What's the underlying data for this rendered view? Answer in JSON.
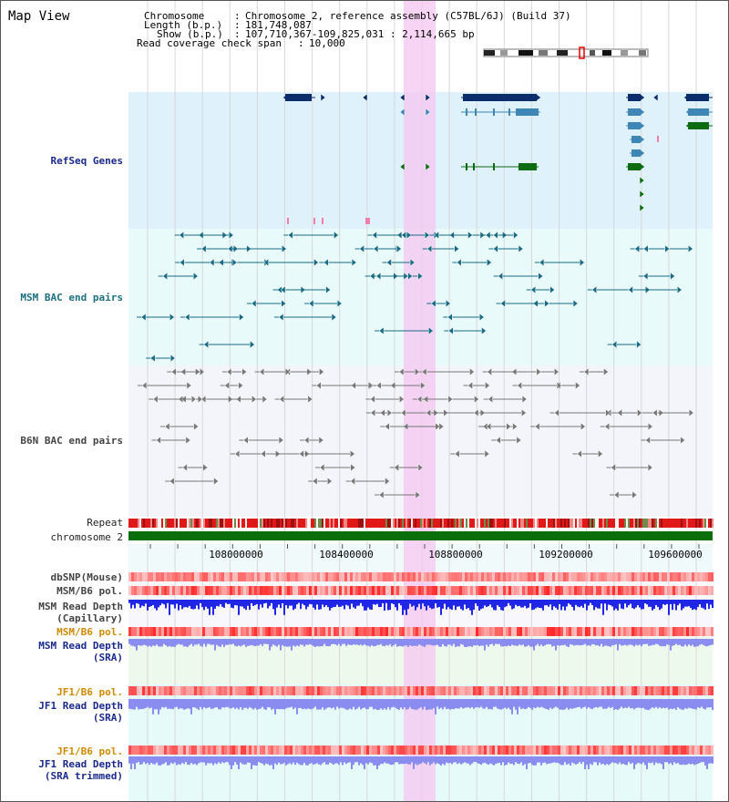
{
  "app": {
    "title": "Map View"
  },
  "info": {
    "chromosome_label": "Chromosome",
    "chromosome_value": "Chromosome 2, reference assembly (C57BL/6J) (Build 37)",
    "length_label": "Length (b.p.)",
    "length_value": "181,748,087",
    "show_label": "Show (b.p.)",
    "show_value": "107,710,367-109,825,031 : 2,114,665 bp",
    "span_label": "Read coverage check span",
    "span_value": "10,000"
  },
  "tracks": {
    "refseq": "RefSeq Genes",
    "msm_bac": "MSM BAC end pairs",
    "b6n_bac": "B6N BAC end pairs",
    "repeat": "Repeat",
    "chromosome": "chromosome 2",
    "dbsnp": "dbSNP(Mouse)",
    "msm_b6_pol": "MSM/B6 pol.",
    "msm_read_depth": "MSM Read Depth",
    "msm_read_depth_sub": "(Capillary)",
    "msm_b6_pol_sra": "MSM/B6 pol.",
    "msm_read_depth_sra": "MSM Read Depth",
    "msm_read_depth_sra_sub": "(SRA)",
    "jf1_b6_pol": "JF1/B6 pol.",
    "jf1_read_depth": "JF1 Read Depth",
    "jf1_read_depth_sub": "(SRA)",
    "jf1_b6_pol_trim": "JF1/B6 pol.",
    "jf1_read_depth_trim": "JF1 Read Depth",
    "jf1_read_depth_trim_sub": "(SRA trimmed)"
  },
  "axis": {
    "ticks": [
      "108000000",
      "108400000",
      "108800000",
      "109200000",
      "109600000"
    ]
  },
  "colors": {
    "refseq_bg": "#dff1fb",
    "msm_bg": "#e8fafa",
    "b6n_bg": "#f4f4fb",
    "highlight": "#f5c6f0",
    "gene_dark": "#0b2d6b",
    "gene_mid": "#3d86b6",
    "gene_green": "#0d6b12",
    "msm_line": "#176b84",
    "b6n_line": "#777777",
    "chromosome_bar": "#0a6e0a",
    "depth_capillary": "#1f26e6",
    "depth_sra": "#8a8cf0",
    "pol_base": "#f7b0b0"
  }
}
